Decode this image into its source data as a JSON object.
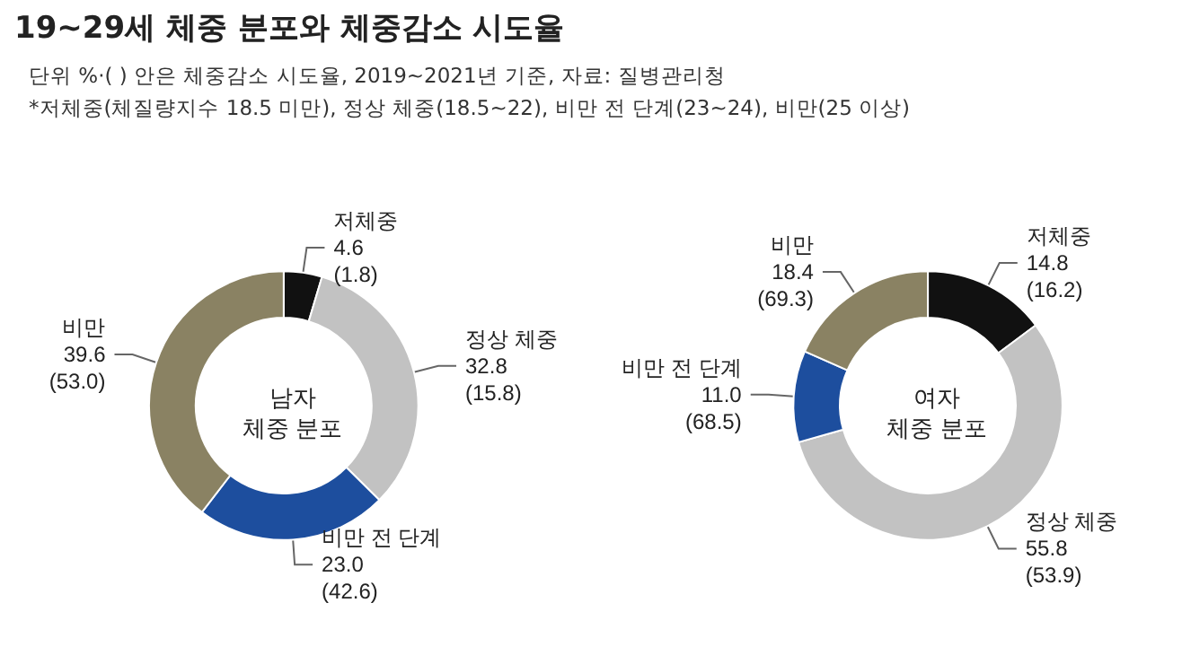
{
  "chart_data": [
    {
      "type": "other",
      "title": "19~29세 체중 분포와 체중감소 시도율",
      "annotations": [
        "단위 %·( ) 안은 체중감소 시도율, 2019~2021년 기준, 자료: 질병관리청",
        "*저체중(체질량지수 18.5 미만), 정상 체중(18.5~22), 비만 전 단계(23~24), 비만(25 이상)"
      ]
    },
    {
      "type": "donut",
      "title": "남자 체중 분포",
      "categories": [
        "저체중",
        "정상 체중",
        "비만 전 단계",
        "비만"
      ],
      "values": [
        4.6,
        32.8,
        23.0,
        39.6
      ],
      "value_labels": [
        "4.6\n(1.8)",
        "32.8\n(15.8)",
        "23.0\n(42.6)",
        "39.6\n(53.0)"
      ],
      "colors": [
        "#111111",
        "#c2c2c2",
        "#1d4e9e",
        "#8a8263"
      ],
      "legend": false
    },
    {
      "type": "donut",
      "title": "여자 체중 분포",
      "categories": [
        "저체중",
        "정상 체중",
        "비만 전 단계",
        "비만"
      ],
      "values": [
        14.8,
        55.8,
        11.0,
        18.4
      ],
      "value_labels": [
        "14.8\n(16.2)",
        "55.8\n(53.9)",
        "11.0\n(68.5)",
        "18.4\n(69.3)"
      ],
      "colors": [
        "#111111",
        "#c2c2c2",
        "#1d4e9e",
        "#8a8263"
      ],
      "legend": false
    }
  ]
}
